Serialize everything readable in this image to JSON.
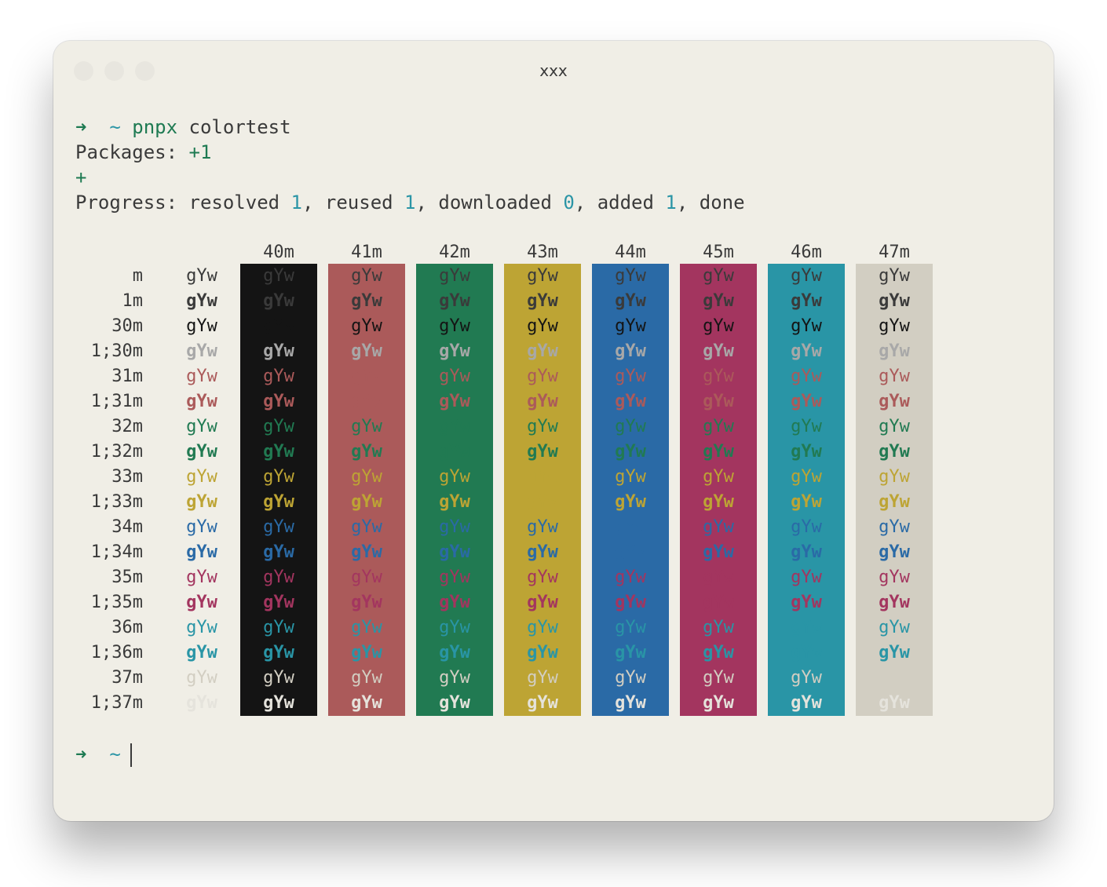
{
  "window": {
    "title": "xxx"
  },
  "terminal": {
    "prompt_symbol": "➜",
    "cwd": "~",
    "command_bin": "pnpx",
    "command_arg": "colortest",
    "packages_label": "Packages: ",
    "packages_value": "+1",
    "plus_line": "+",
    "progress_label": "Progress: resolved ",
    "progress_resolved": "1",
    "progress_reused_label": ", reused ",
    "progress_reused": "1",
    "progress_downloaded_label": ", downloaded ",
    "progress_downloaded": "0",
    "progress_added_label": ", added ",
    "progress_added": "1",
    "progress_done_label": ", done"
  },
  "colortest": {
    "sample": "gYw",
    "row_codes": [
      "m",
      "1m",
      "30m",
      "1;30m",
      "31m",
      "1;31m",
      "32m",
      "1;32m",
      "33m",
      "1;33m",
      "34m",
      "1;34m",
      "35m",
      "1;35m",
      "36m",
      "1;36m",
      "37m",
      "1;37m"
    ],
    "background_columns": [
      {
        "code": "40m",
        "color": "#141414"
      },
      {
        "code": "41m",
        "color": "#ab5a5a"
      },
      {
        "code": "42m",
        "color": "#217a52"
      },
      {
        "code": "43m",
        "color": "#bda434"
      },
      {
        "code": "44m",
        "color": "#2a6aa6"
      },
      {
        "code": "45m",
        "color": "#a3355f"
      },
      {
        "code": "46m",
        "color": "#2995a6"
      },
      {
        "code": "47m",
        "color": "#d2cec2"
      }
    ],
    "foreground_colors": {
      "default": "#3a3a3a",
      "30": "#141414",
      "1;30": "#a8a8a8",
      "31": "#ab5a5a",
      "32": "#217a52",
      "33": "#bda434",
      "34": "#2a6aa6",
      "35": "#a3355f",
      "36": "#2995a6",
      "37": "#d2cec2",
      "1;37": "#e5e3dc"
    }
  }
}
